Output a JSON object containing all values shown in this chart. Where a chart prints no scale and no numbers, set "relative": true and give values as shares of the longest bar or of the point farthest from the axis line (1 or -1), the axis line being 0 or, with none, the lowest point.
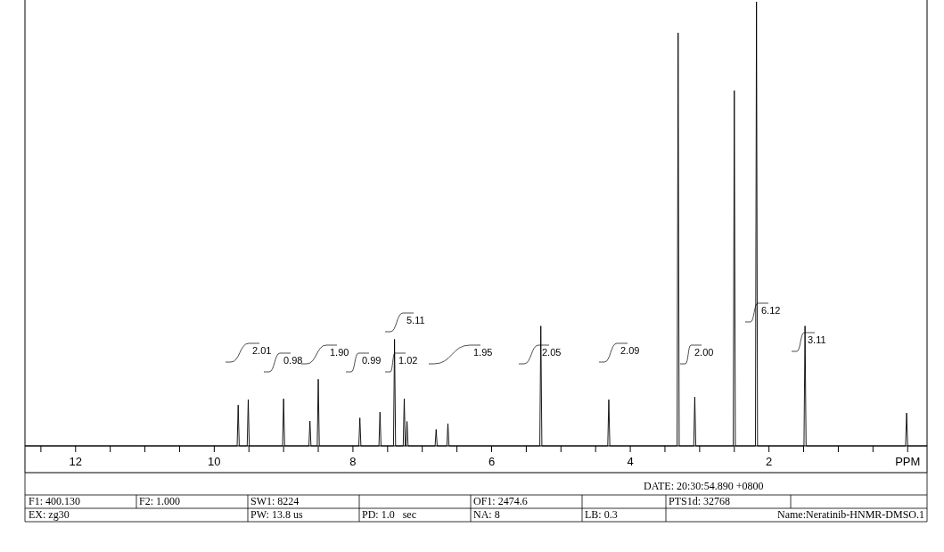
{
  "chart_data": {
    "type": "line",
    "relative": true,
    "color": "#000000",
    "x": [
      12.73,
      9.67,
      9.655,
      9.64,
      9.525,
      9.51,
      9.495,
      9.015,
      9.0,
      8.985,
      8.635,
      8.62,
      8.605,
      8.515,
      8.5,
      8.485,
      7.915,
      7.9,
      7.885,
      7.625,
      7.61,
      7.595,
      7.415,
      7.4,
      7.385,
      7.275,
      7.26,
      7.245,
      7.235,
      7.22,
      7.205,
      6.815,
      6.8,
      6.785,
      6.645,
      6.63,
      6.615,
      5.305,
      5.29,
      5.275,
      4.325,
      4.31,
      4.295,
      3.325,
      3.31,
      3.295,
      3.085,
      3.07,
      3.055,
      2.515,
      2.5,
      2.485,
      2.195,
      2.18,
      2.165,
      1.495,
      1.48,
      1.465,
      0.03,
      0.015,
      0.0,
      -0.28
    ],
    "values": [
      0,
      0,
      0.092,
      0,
      0,
      0.104,
      0,
      0,
      0.106,
      0,
      0,
      0.056,
      0,
      0,
      0.15,
      0,
      0,
      0.063,
      0,
      0,
      0.076,
      0,
      0,
      0.24,
      0,
      0,
      0.106,
      0,
      0,
      0.055,
      0,
      0,
      0.037,
      0,
      0,
      0.05,
      0,
      0,
      0.27,
      0,
      0,
      0.104,
      0,
      0,
      0.93,
      0,
      0,
      0.11,
      0,
      0,
      0.8,
      0,
      0,
      1.0,
      0,
      0,
      0.27,
      0,
      0,
      0.074,
      0,
      0
    ],
    "xlim": [
      12.73,
      -0.28
    ],
    "xticks": [
      {
        "value": 12.5,
        "label": null
      },
      12,
      {
        "value": 11.5,
        "label": null
      },
      {
        "value": 11,
        "label": null
      },
      {
        "value": 10.5,
        "label": null
      },
      10,
      {
        "value": 9.5,
        "label": null
      },
      {
        "value": 9,
        "label": null
      },
      {
        "value": 8.5,
        "label": null
      },
      8,
      {
        "value": 7.5,
        "label": null
      },
      {
        "value": 7,
        "label": null
      },
      {
        "value": 6.5,
        "label": null
      },
      6,
      {
        "value": 5.5,
        "label": null
      },
      {
        "value": 5,
        "label": null
      },
      {
        "value": 4.5,
        "label": null
      },
      4,
      {
        "value": 3.5,
        "label": null
      },
      {
        "value": 3,
        "label": null
      },
      {
        "value": 2.5,
        "label": null
      },
      2,
      {
        "value": 1.5,
        "label": null
      },
      {
        "value": 1,
        "label": null
      },
      {
        "value": 0.5,
        "label": null
      },
      {
        "value": 0,
        "label": "PPM"
      }
    ],
    "annotations": [
      "2.01",
      "0.98",
      "1.90",
      "0.99",
      "1.02",
      "5.11",
      "1.95",
      "2.05",
      "2.09",
      "2.00",
      "6.12",
      "3.11",
      "DATE: 20:30:54.890 +0800",
      "F1: 400.130",
      "F2: 1.000",
      "SW1: 8224",
      "OF1: 2474.6",
      "PTS1d: 32768",
      "EX: zg30",
      "PW: 13.8 us",
      "PD: 1.0   sec",
      "NA: 8",
      "LB: 0.3",
      "Name:Neratinib-HNMR-DMSO.1"
    ]
  }
}
